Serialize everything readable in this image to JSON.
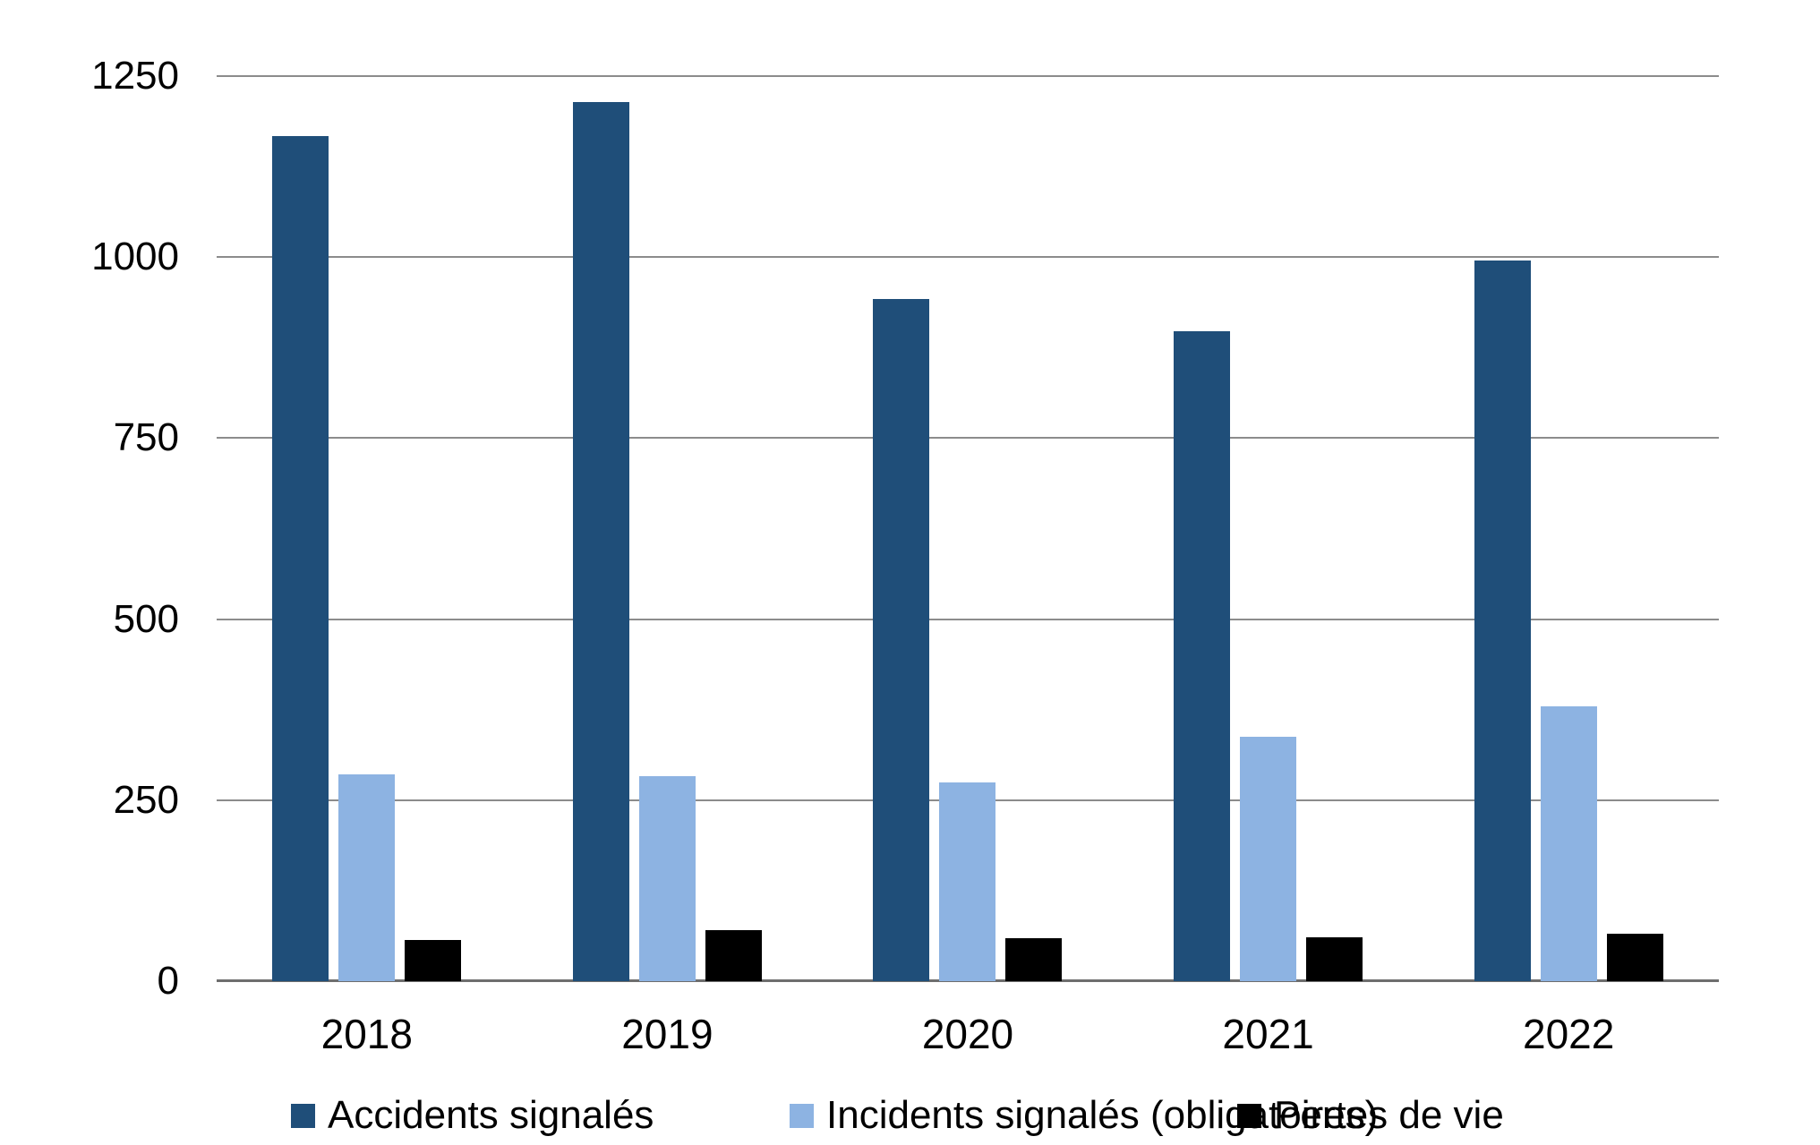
{
  "chart_data": {
    "type": "bar",
    "title": "",
    "categories": [
      "2018",
      "2019",
      "2020",
      "2021",
      "2022"
    ],
    "series": [
      {
        "name": "Accidents signalés",
        "color": "#1F4E79",
        "values": [
          1167,
          1214,
          942,
          898,
          995
        ]
      },
      {
        "name": "Incidents signalés (obligatoires)",
        "color": "#8DB3E2",
        "values": [
          286,
          283,
          274,
          338,
          380
        ]
      },
      {
        "name": "Pertes de vie",
        "color": "#000000",
        "values": [
          57,
          71,
          59,
          60,
          66
        ]
      }
    ],
    "xlabel": "",
    "ylabel": "",
    "ylim": [
      0,
      1250
    ],
    "yticks": [
      0,
      250,
      500,
      750,
      1000,
      1250
    ],
    "grid": true,
    "legend_position": "bottom",
    "gridline_color": "#8c8c8c",
    "axis_line_color": "#6e6e6e",
    "background_color": "#ffffff"
  }
}
